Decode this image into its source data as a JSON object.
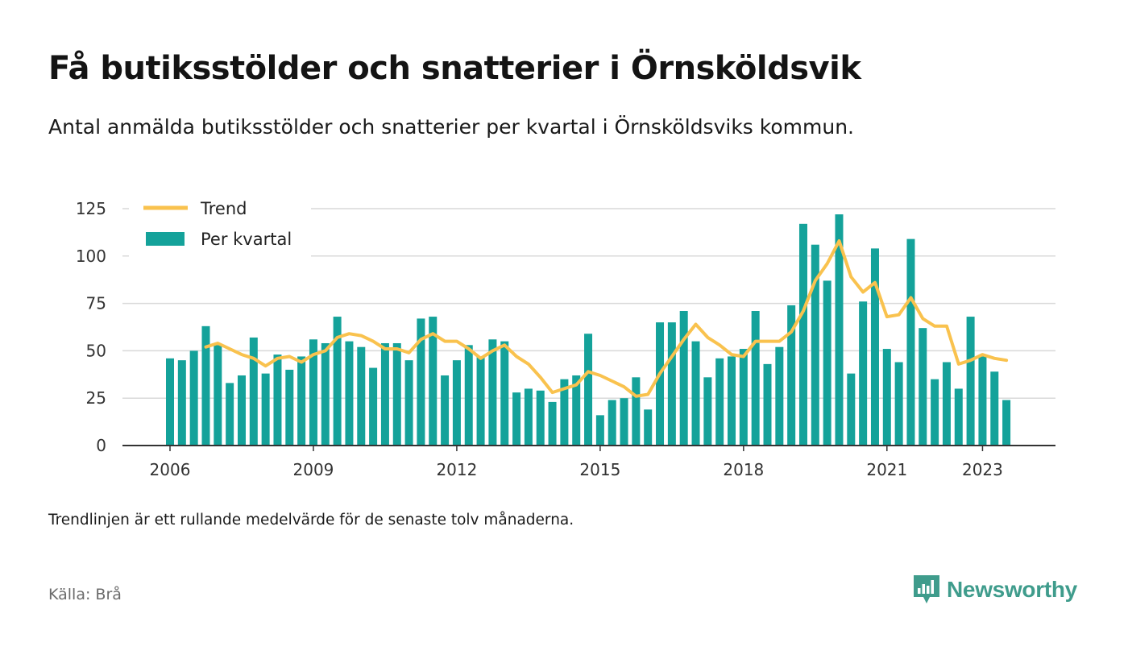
{
  "header": {
    "title": "Få butiksstölder och snatterier i Örnsköldsvik",
    "subtitle": "Antal anmälda butiksstölder och snatterier per kvartal i Örnsköldsviks kommun."
  },
  "footer": {
    "note": "Trendlinjen är ett rullande medelvärde för de senaste tolv månaderna.",
    "source": "Källa: Brå",
    "brand": "Newsworthy"
  },
  "colors": {
    "bar": "#14a29a",
    "trend": "#f9c24e",
    "brand": "#3f9c8c",
    "grid": "#d9d9d9",
    "axis": "#333333"
  },
  "chart_data": {
    "type": "bar",
    "x_axis_ticks": [
      "2006",
      "2009",
      "2012",
      "2015",
      "2018",
      "2021",
      "2023"
    ],
    "y_axis_ticks": [
      "0",
      "25",
      "50",
      "75",
      "100",
      "125"
    ],
    "ylim": [
      0,
      125
    ],
    "grid": true,
    "legend_position": "top-left",
    "series": [
      {
        "name": "Per kvartal",
        "kind": "bar",
        "values": [
          46,
          45,
          50,
          63,
          53,
          33,
          37,
          57,
          38,
          48,
          40,
          47,
          56,
          54,
          68,
          55,
          52,
          41,
          54,
          54,
          45,
          67,
          68,
          37,
          45,
          53,
          47,
          56,
          55,
          28,
          30,
          29,
          23,
          35,
          37,
          59,
          16,
          24,
          25,
          36,
          19,
          65,
          65,
          71,
          55,
          36,
          46,
          47,
          51,
          71,
          43,
          52,
          74,
          117,
          106,
          87,
          122,
          38,
          76,
          104,
          51,
          44,
          109,
          62,
          35,
          44,
          30,
          68,
          47,
          39,
          24
        ]
      },
      {
        "name": "Trend",
        "kind": "line",
        "values": [
          null,
          null,
          null,
          52,
          54,
          51,
          48,
          46,
          42,
          46,
          47,
          44,
          48,
          50,
          57,
          59,
          58,
          55,
          51,
          51,
          49,
          56,
          59,
          55,
          55,
          51,
          46,
          50,
          53,
          47,
          43,
          36,
          28,
          30,
          32,
          39,
          37,
          34,
          31,
          26,
          27,
          38,
          47,
          56,
          64,
          57,
          53,
          48,
          47,
          55,
          55,
          55,
          60,
          71,
          87,
          96,
          108,
          89,
          81,
          86,
          68,
          69,
          78,
          67,
          63,
          63,
          43,
          45,
          48,
          46,
          45
        ]
      }
    ]
  }
}
